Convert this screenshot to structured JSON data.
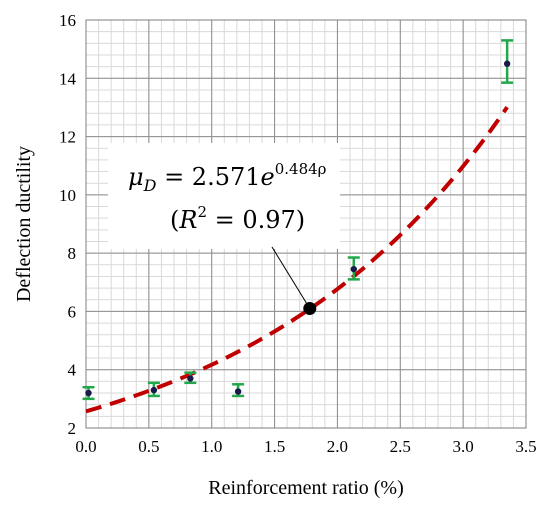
{
  "chart_data": {
    "type": "scatter",
    "xlabel": "Reinforcement ratio (%)",
    "ylabel": "Deflection ductility",
    "xlim": [
      0.0,
      3.5
    ],
    "ylim": [
      2,
      16
    ],
    "x_ticks": [
      0.0,
      0.5,
      1.0,
      1.5,
      2.0,
      2.5,
      3.0,
      3.5
    ],
    "x_tick_labels": [
      "0.0",
      "0.5",
      "1.0",
      "1.5",
      "2.0",
      "2.5",
      "3.0",
      "3.5"
    ],
    "y_ticks": [
      2,
      4,
      6,
      8,
      10,
      12,
      14,
      16
    ],
    "y_tick_labels": [
      "2",
      "4",
      "6",
      "8",
      "10",
      "12",
      "14",
      "16"
    ],
    "major_grid": true,
    "minor_grid": true,
    "minor_divisions": 5,
    "series": [
      {
        "type": "scatter",
        "color": "#1a1a4a",
        "errorbar_color": "#22a84a",
        "points": [
          {
            "x": 0.02,
            "y": 3.2,
            "low": 3.0,
            "high": 3.4
          },
          {
            "x": 0.54,
            "y": 3.3,
            "low": 3.1,
            "high": 3.55
          },
          {
            "x": 0.83,
            "y": 3.7,
            "low": 3.55,
            "high": 3.9
          },
          {
            "x": 1.21,
            "y": 3.25,
            "low": 3.1,
            "high": 3.5
          },
          {
            "x": 2.13,
            "y": 7.45,
            "low": 7.1,
            "high": 7.85
          },
          {
            "x": 3.35,
            "y": 14.5,
            "low": 13.85,
            "high": 15.3
          }
        ]
      },
      {
        "type": "line",
        "style": "dashed",
        "color": "#c00000",
        "formula": {
          "a": 2.571,
          "b": 0.484
        },
        "x_range": [
          0.0,
          3.35
        ]
      }
    ],
    "annotation": {
      "line1": {
        "lhs": "μ",
        "lhs_sub": "D",
        "eq": " = 2.571",
        "base": "e",
        "exp": "0.484ρ"
      },
      "line2": {
        "open": "(",
        "var": "R",
        "exp": "2",
        "rest": " = 0.97)"
      },
      "target": {
        "x": 1.78,
        "y": 6.1
      }
    }
  }
}
